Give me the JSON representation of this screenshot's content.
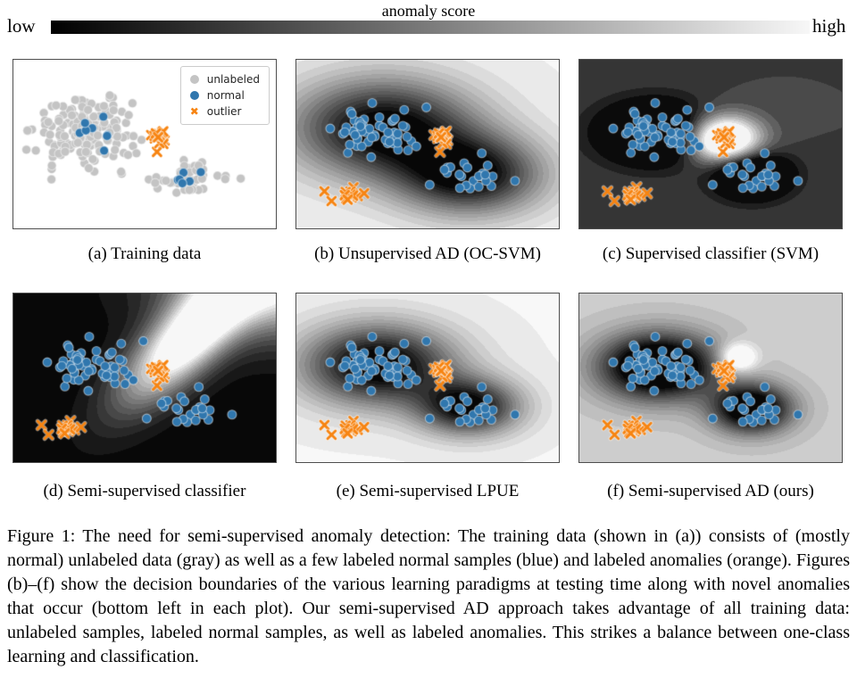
{
  "colorbar": {
    "title": "anomaly score",
    "left_label": "low",
    "right_label": "high",
    "gradient_from": "#000000",
    "gradient_to": "#f7f7f7"
  },
  "colors": {
    "unlabeled": "#c4c4c4",
    "normal": "#3077ae",
    "outlier": "#f78411",
    "panel_border": "#4e4e4e"
  },
  "legend": {
    "items": [
      {
        "label": "unlabeled",
        "marker": "circle",
        "color_key": "unlabeled"
      },
      {
        "label": "normal",
        "marker": "circle",
        "color_key": "normal"
      },
      {
        "label": "outlier",
        "marker": "x",
        "color_key": "outlier"
      }
    ]
  },
  "chart_data": {
    "type": "scatter",
    "marker_radius": 5.0,
    "groups": {
      "gray_left": {
        "color": "unlabeled",
        "marker": "circle",
        "n": 165,
        "cx": 0.27,
        "cy": 0.42,
        "sx": 0.09,
        "sy": 0.105,
        "seed": 55
      },
      "gray_right": {
        "color": "unlabeled",
        "marker": "circle",
        "n": 44,
        "cx": 0.66,
        "cy": 0.685,
        "sx": 0.06,
        "sy": 0.052,
        "seed": 66
      },
      "normal_a_left": {
        "color": "normal",
        "marker": "circle",
        "n": 8,
        "cx": 0.295,
        "cy": 0.43,
        "sx": 0.05,
        "sy": 0.05,
        "seed": 77
      },
      "normal_a_right": {
        "color": "normal",
        "marker": "circle",
        "n": 6,
        "cx": 0.655,
        "cy": 0.685,
        "sx": 0.03,
        "sy": 0.028,
        "seed": 88
      },
      "blue_left": {
        "color": "normal",
        "marker": "circle",
        "n": 58,
        "cx": 0.31,
        "cy": 0.44,
        "sx": 0.082,
        "sy": 0.075,
        "seed": 11
      },
      "blue_right": {
        "color": "normal",
        "marker": "circle",
        "n": 24,
        "cx": 0.67,
        "cy": 0.67,
        "sx": 0.052,
        "sy": 0.05,
        "seed": 22
      },
      "orange_train": {
        "color": "outlier",
        "marker": "x",
        "n": 16,
        "cx": 0.555,
        "cy": 0.475,
        "sx": 0.022,
        "sy": 0.032,
        "seed": 33
      },
      "novel_cluster": {
        "color": "outlier",
        "marker": "x",
        "n": 11,
        "cx": 0.205,
        "cy": 0.805,
        "sx": 0.018,
        "sy": 0.023,
        "seed": 44
      },
      "novel_singles": {
        "color": "outlier",
        "marker": "x",
        "points": [
          [
            0.107,
            0.78
          ],
          [
            0.134,
            0.838
          ],
          [
            0.258,
            0.792
          ]
        ]
      }
    },
    "panels": [
      {
        "id": "a",
        "caption": "(a) Training data",
        "legend": true,
        "field": null,
        "groups": [
          "gray_left",
          "gray_right",
          "normal_a_left",
          "normal_a_right",
          "orange_train"
        ]
      },
      {
        "id": "b",
        "caption": "(b) Unsupervised AD (OC-SVM)",
        "legend": false,
        "field": {
          "base": 0.95,
          "levels": 18,
          "components": [
            {
              "amp": -1.0,
              "cx": 0.33,
              "cy": 0.4,
              "sx": 0.24,
              "sy": 0.2,
              "rot": 0
            },
            {
              "amp": -0.95,
              "cx": 0.66,
              "cy": 0.68,
              "sx": 0.19,
              "sy": 0.16,
              "rot": 0
            }
          ]
        },
        "groups": [
          "blue_left",
          "blue_right",
          "orange_train",
          "novel_cluster",
          "novel_singles"
        ]
      },
      {
        "id": "c",
        "caption": "(c) Supervised classifier (SVM)",
        "legend": false,
        "field": {
          "base": 0.25,
          "levels": 12,
          "components": [
            {
              "amp": -0.85,
              "cx": 0.29,
              "cy": 0.43,
              "sx": 0.145,
              "sy": 0.125,
              "rot": 0
            },
            {
              "amp": -0.85,
              "cx": 0.655,
              "cy": 0.68,
              "sx": 0.1,
              "sy": 0.095,
              "rot": 0
            },
            {
              "amp": 1.35,
              "cx": 0.545,
              "cy": 0.47,
              "sx": 0.1,
              "sy": 0.1,
              "rot": 0
            }
          ]
        },
        "groups": [
          "blue_left",
          "blue_right",
          "orange_train",
          "novel_cluster",
          "novel_singles"
        ]
      },
      {
        "id": "d",
        "caption": "(d) Semi-supervised classifier",
        "legend": false,
        "field": {
          "base": 0.02,
          "levels": 16,
          "components": [
            {
              "amp": 1.2,
              "cx": 0.66,
              "cy": 0.27,
              "sx": 0.3,
              "sy": 0.1,
              "rot": -60
            },
            {
              "amp": 1.0,
              "cx": 1.02,
              "cy": -0.08,
              "sx": 0.28,
              "sy": 0.22,
              "rot": 0
            }
          ]
        },
        "groups": [
          "blue_left",
          "blue_right",
          "orange_train",
          "novel_cluster",
          "novel_singles"
        ]
      },
      {
        "id": "e",
        "caption": "(e) Semi-supervised LPUE",
        "legend": false,
        "field": {
          "base": 0.95,
          "levels": 18,
          "components": [
            {
              "amp": -1.05,
              "cx": 0.31,
              "cy": 0.42,
              "sx": 0.2,
              "sy": 0.165,
              "rot": 0
            },
            {
              "amp": -0.95,
              "cx": 0.655,
              "cy": 0.67,
              "sx": 0.135,
              "sy": 0.115,
              "rot": 0
            }
          ]
        },
        "groups": [
          "blue_left",
          "blue_right",
          "orange_train",
          "novel_cluster",
          "novel_singles"
        ]
      },
      {
        "id": "f",
        "caption": "(f) Semi-supervised AD (ours)",
        "legend": false,
        "field": {
          "base": 0.8,
          "levels": 18,
          "components": [
            {
              "amp": -1.2,
              "cx": 0.3,
              "cy": 0.43,
              "sx": 0.155,
              "sy": 0.135,
              "rot": 0
            },
            {
              "amp": -1.05,
              "cx": 0.655,
              "cy": 0.68,
              "sx": 0.105,
              "sy": 0.1,
              "rot": 0
            },
            {
              "amp": 0.55,
              "cx": 0.6,
              "cy": 0.38,
              "sx": 0.05,
              "sy": 0.06,
              "rot": 0
            }
          ]
        },
        "groups": [
          "blue_left",
          "blue_right",
          "orange_train",
          "novel_cluster",
          "novel_singles"
        ]
      }
    ]
  },
  "caption": {
    "text": "Figure 1: The need for semi-supervised anomaly detection: The training data (shown in (a)) consists of (mostly normal) unlabeled data (gray) as well as a few labeled normal samples (blue) and labeled anomalies (orange). Figures (b)–(f) show the decision boundaries of the various learning paradigms at testing time along with novel anomalies that occur (bottom left in each plot). Our semi-supervised AD approach takes advantage of all training data: unlabeled samples, labeled normal samples, as well as labeled anomalies. This strikes a balance between one-class learning and classification."
  }
}
